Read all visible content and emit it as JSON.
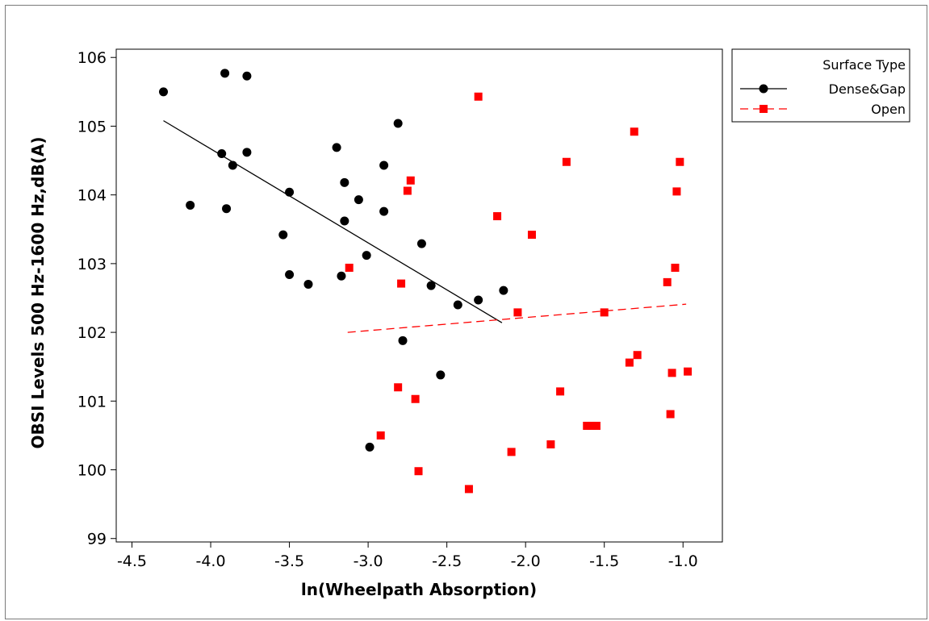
{
  "chart_data": {
    "type": "scatter",
    "xlabel": "ln(Wheelpath Absorption)",
    "ylabel": "OBSI Levels 500 Hz-1600 Hz,dB(A)",
    "xlim": [
      -4.6,
      -0.75
    ],
    "ylim": [
      98.95,
      106.12
    ],
    "x_ticks": [
      -4.5,
      -4.0,
      -3.5,
      -3.0,
      -2.5,
      -2.0,
      -1.5,
      -1.0
    ],
    "x_tick_labels": [
      "-4.5",
      "-4.0",
      "-3.5",
      "-3.0",
      "-2.5",
      "-2.0",
      "-1.5",
      "-1.0"
    ],
    "y_ticks": [
      99,
      100,
      101,
      102,
      103,
      104,
      105,
      106
    ],
    "y_tick_labels": [
      "99",
      "100",
      "101",
      "102",
      "103",
      "104",
      "105",
      "106"
    ],
    "grid": false,
    "legend": {
      "title": "Surface Type",
      "placement": "right"
    },
    "series": [
      {
        "name": "Dense&Gap",
        "color": "#000000",
        "marker": "circle",
        "line_style": "solid",
        "points": [
          [
            -4.3,
            105.5
          ],
          [
            -3.91,
            105.77
          ],
          [
            -3.77,
            105.73
          ],
          [
            -3.93,
            104.6
          ],
          [
            -3.86,
            104.43
          ],
          [
            -3.77,
            104.62
          ],
          [
            -4.13,
            103.85
          ],
          [
            -3.9,
            103.8
          ],
          [
            -3.5,
            104.04
          ],
          [
            -3.54,
            103.42
          ],
          [
            -3.5,
            102.84
          ],
          [
            -3.38,
            102.7
          ],
          [
            -3.2,
            104.69
          ],
          [
            -3.15,
            104.18
          ],
          [
            -3.15,
            103.62
          ],
          [
            -3.06,
            103.93
          ],
          [
            -3.17,
            102.82
          ],
          [
            -3.01,
            103.12
          ],
          [
            -2.9,
            104.43
          ],
          [
            -2.9,
            103.76
          ],
          [
            -2.81,
            105.04
          ],
          [
            -2.66,
            103.29
          ],
          [
            -2.6,
            102.68
          ],
          [
            -2.78,
            101.88
          ],
          [
            -2.43,
            102.4
          ],
          [
            -2.3,
            102.47
          ],
          [
            -2.14,
            102.61
          ],
          [
            -2.54,
            101.38
          ],
          [
            -2.99,
            100.33
          ]
        ],
        "fit_line": [
          [
            -4.3,
            105.08
          ],
          [
            -2.15,
            102.14
          ]
        ]
      },
      {
        "name": "Open",
        "color": "#ff0000",
        "marker": "square",
        "line_style": "dashed",
        "points": [
          [
            -2.3,
            105.43
          ],
          [
            -2.73,
            104.21
          ],
          [
            -2.75,
            104.06
          ],
          [
            -2.18,
            103.69
          ],
          [
            -1.96,
            103.42
          ],
          [
            -1.74,
            104.48
          ],
          [
            -3.12,
            102.94
          ],
          [
            -2.79,
            102.71
          ],
          [
            -2.05,
            102.29
          ],
          [
            -1.5,
            102.29
          ],
          [
            -1.31,
            104.92
          ],
          [
            -1.02,
            104.48
          ],
          [
            -1.04,
            104.05
          ],
          [
            -1.05,
            102.94
          ],
          [
            -1.1,
            102.73
          ],
          [
            -1.34,
            101.56
          ],
          [
            -1.29,
            101.67
          ],
          [
            -1.07,
            101.41
          ],
          [
            -0.97,
            101.43
          ],
          [
            -1.08,
            100.81
          ],
          [
            -2.81,
            101.2
          ],
          [
            -2.7,
            101.03
          ],
          [
            -2.92,
            100.5
          ],
          [
            -1.78,
            101.14
          ],
          [
            -1.61,
            100.64
          ],
          [
            -1.58,
            100.64
          ],
          [
            -1.55,
            100.64
          ],
          [
            -1.84,
            100.37
          ],
          [
            -2.09,
            100.26
          ],
          [
            -2.68,
            99.98
          ],
          [
            -2.36,
            99.72
          ]
        ],
        "fit_line": [
          [
            -3.13,
            102.0
          ],
          [
            -0.98,
            102.41
          ]
        ]
      }
    ]
  }
}
